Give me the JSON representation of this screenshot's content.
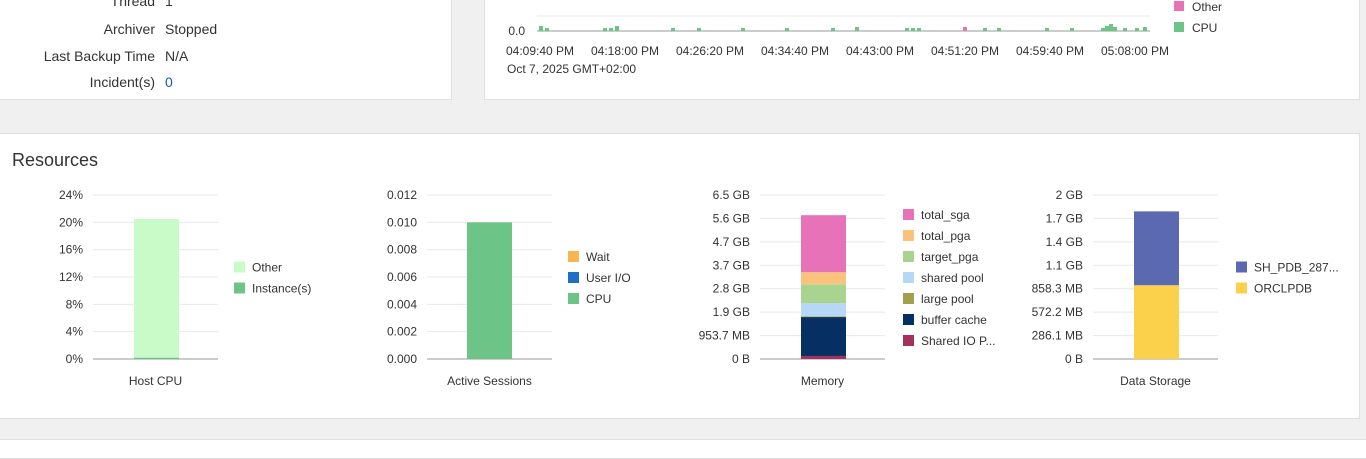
{
  "summary": {
    "rows": [
      {
        "label": "Thread",
        "value": "1"
      },
      {
        "label": "Archiver",
        "value": "Stopped"
      },
      {
        "label": "Last Backup Time",
        "value": "N/A"
      },
      {
        "label": "Incident(s)",
        "value": "0"
      }
    ]
  },
  "activity_chart": {
    "y_zero_label": "0.0",
    "x_ticks": [
      "04:09:40 PM",
      "04:18:00 PM",
      "04:26:20 PM",
      "04:34:40 PM",
      "04:43:00 PM",
      "04:51:20 PM",
      "04:59:40 PM",
      "05:08:00 PM"
    ],
    "date_label": "Oct 7, 2025 GMT+02:00",
    "legend": [
      {
        "name": "Other",
        "color": "#e872b8"
      },
      {
        "name": "CPU",
        "color": "#6cc487"
      }
    ]
  },
  "resources": {
    "title": "Resources"
  },
  "chart_data": [
    {
      "type": "bar",
      "title": "Host CPU",
      "y_ticks": [
        "24%",
        "20%",
        "16%",
        "12%",
        "8%",
        "4%",
        "0%"
      ],
      "ylim": [
        0,
        24
      ],
      "series": [
        {
          "name": "Instance(s)",
          "color": "#6cc487",
          "values": [
            0.2
          ]
        },
        {
          "name": "Other",
          "color": "#c9fbc9",
          "values": [
            20.3
          ]
        }
      ],
      "legend": [
        {
          "name": "Other",
          "color": "#c9fbc9"
        },
        {
          "name": "Instance(s)",
          "color": "#6cc487"
        }
      ]
    },
    {
      "type": "bar",
      "title": "Active Sessions",
      "y_ticks": [
        "0.012",
        "0.010",
        "0.008",
        "0.006",
        "0.004",
        "0.002",
        "0.000"
      ],
      "ylim": [
        0,
        0.012
      ],
      "series": [
        {
          "name": "CPU",
          "color": "#6cc487",
          "values": [
            0.01
          ]
        },
        {
          "name": "User I/O",
          "color": "#1f6fc5",
          "values": [
            0
          ]
        },
        {
          "name": "Wait",
          "color": "#fbb54f",
          "values": [
            0
          ]
        }
      ],
      "legend": [
        {
          "name": "Wait",
          "color": "#fbb54f"
        },
        {
          "name": "User I/O",
          "color": "#1f6fc5"
        },
        {
          "name": "CPU",
          "color": "#6cc487"
        }
      ]
    },
    {
      "type": "bar",
      "title": "Memory",
      "y_ticks": [
        "6.5 GB",
        "5.6 GB",
        "4.7 GB",
        "3.7 GB",
        "2.8 GB",
        "1.9 GB",
        "953.7 MB",
        "0 B"
      ],
      "ylim": [
        0,
        6.5
      ],
      "series": [
        {
          "name": "Shared IO P...",
          "color": "#a3305f",
          "values": [
            0.12
          ]
        },
        {
          "name": "buffer cache",
          "color": "#063063",
          "values": [
            1.55
          ]
        },
        {
          "name": "large pool",
          "color": "#a1a14c",
          "values": [
            0.02
          ]
        },
        {
          "name": "shared pool",
          "color": "#b6d7f6",
          "values": [
            0.52
          ]
        },
        {
          "name": "target_pga",
          "color": "#a8d490",
          "values": [
            0.75
          ]
        },
        {
          "name": "total_pga",
          "color": "#fbc27e",
          "values": [
            0.48
          ]
        },
        {
          "name": "total_sga",
          "color": "#e872b8",
          "values": [
            2.26
          ]
        }
      ],
      "legend": [
        {
          "name": "total_sga",
          "color": "#e872b8"
        },
        {
          "name": "total_pga",
          "color": "#fbc27e"
        },
        {
          "name": "target_pga",
          "color": "#a8d490"
        },
        {
          "name": "shared pool",
          "color": "#b6d7f6"
        },
        {
          "name": "large pool",
          "color": "#a1a14c"
        },
        {
          "name": "buffer cache",
          "color": "#063063"
        },
        {
          "name": "Shared IO P...",
          "color": "#a3305f"
        }
      ]
    },
    {
      "type": "bar",
      "title": "Data Storage",
      "y_ticks": [
        "2 GB",
        "1.7 GB",
        "1.4 GB",
        "1.1 GB",
        "858.3 MB",
        "572.2 MB",
        "286.1 MB",
        "0 B"
      ],
      "ylim": [
        0,
        2
      ],
      "series": [
        {
          "name": "ORCLPDB",
          "color": "#fbd04a",
          "values": [
            0.9
          ]
        },
        {
          "name": "SH_PDB_287...",
          "color": "#5b69b0",
          "values": [
            0.9
          ]
        }
      ],
      "legend": [
        {
          "name": "SH_PDB_287...",
          "color": "#5b69b0"
        },
        {
          "name": "ORCLPDB",
          "color": "#fbd04a"
        }
      ]
    }
  ]
}
